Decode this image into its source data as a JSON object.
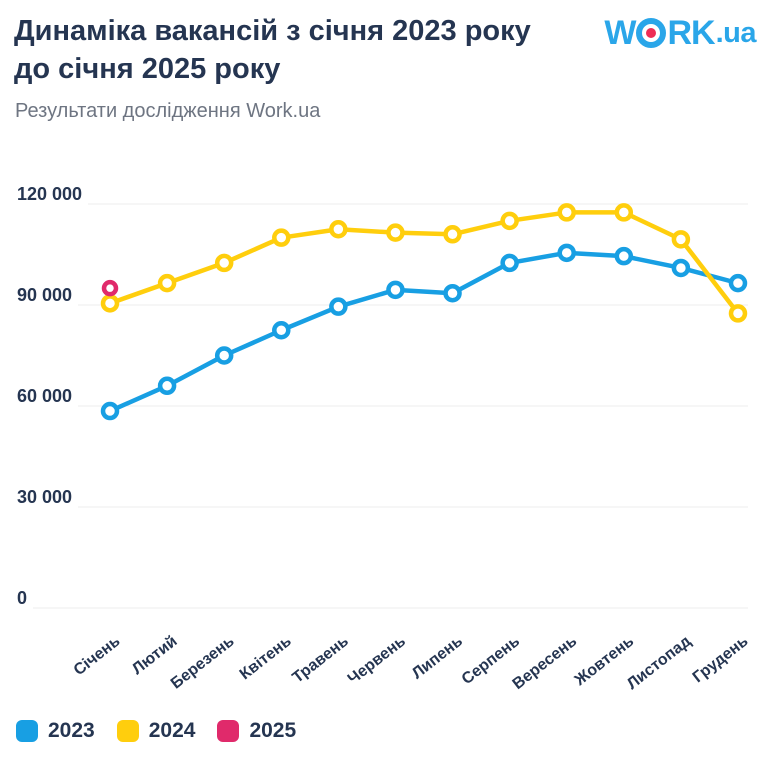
{
  "header": {
    "title_line1": "Динаміка вакансій з січня 2023 року",
    "title_line2": "до січня 2025 року",
    "subtitle": "Результати дослідження Work.ua",
    "logo": {
      "letter_w": "W",
      "letters_rk": "RK",
      "suffix": ".ua"
    }
  },
  "colors": {
    "blue_2023": "#189fe3",
    "yellow_2024": "#ffce0d",
    "pink_2025": "#e02a6b",
    "navy_text": "#253551",
    "muted_text": "#6e7582",
    "grid": "#ededed",
    "logo_blue": "#2aa6e9",
    "logo_dot": "#ed2d55",
    "background": "#ffffff"
  },
  "chart_data": {
    "type": "line",
    "title": "Динаміка вакансій з січня 2023 року до січня 2025 року",
    "subtitle": "Результати дослідження Work.ua",
    "categories": [
      "Січень",
      "Лютий",
      "Березень",
      "Квітень",
      "Травень",
      "Червень",
      "Липень",
      "Серпень",
      "Вересень",
      "Жовтень",
      "Листопад",
      "Грудень"
    ],
    "series": [
      {
        "name": "2023",
        "color": "#189fe3",
        "values": [
          58500,
          66000,
          75000,
          82500,
          89500,
          94500,
          93500,
          102500,
          105500,
          104500,
          101000,
          96500
        ]
      },
      {
        "name": "2024",
        "color": "#ffce0d",
        "values": [
          90500,
          96500,
          102500,
          110000,
          112500,
          111500,
          111000,
          115000,
          117500,
          117500,
          109500,
          87500
        ]
      },
      {
        "name": "2025",
        "color": "#e02a6b",
        "values": [
          95000
        ]
      }
    ],
    "y_ticks": [
      {
        "label": "0",
        "value": 0
      },
      {
        "label": "30 000",
        "value": 30000
      },
      {
        "label": "60 000",
        "value": 60000
      },
      {
        "label": "90 000",
        "value": 90000
      },
      {
        "label": "120 000",
        "value": 120000
      }
    ],
    "ylim": [
      0,
      120000
    ],
    "grid": true,
    "legend_position": "bottom-left",
    "marker_style": "hollow-circle"
  },
  "legend": {
    "items": [
      {
        "label": "2023",
        "color": "#189fe3"
      },
      {
        "label": "2024",
        "color": "#ffce0d"
      },
      {
        "label": "2025",
        "color": "#e02a6b"
      }
    ]
  }
}
